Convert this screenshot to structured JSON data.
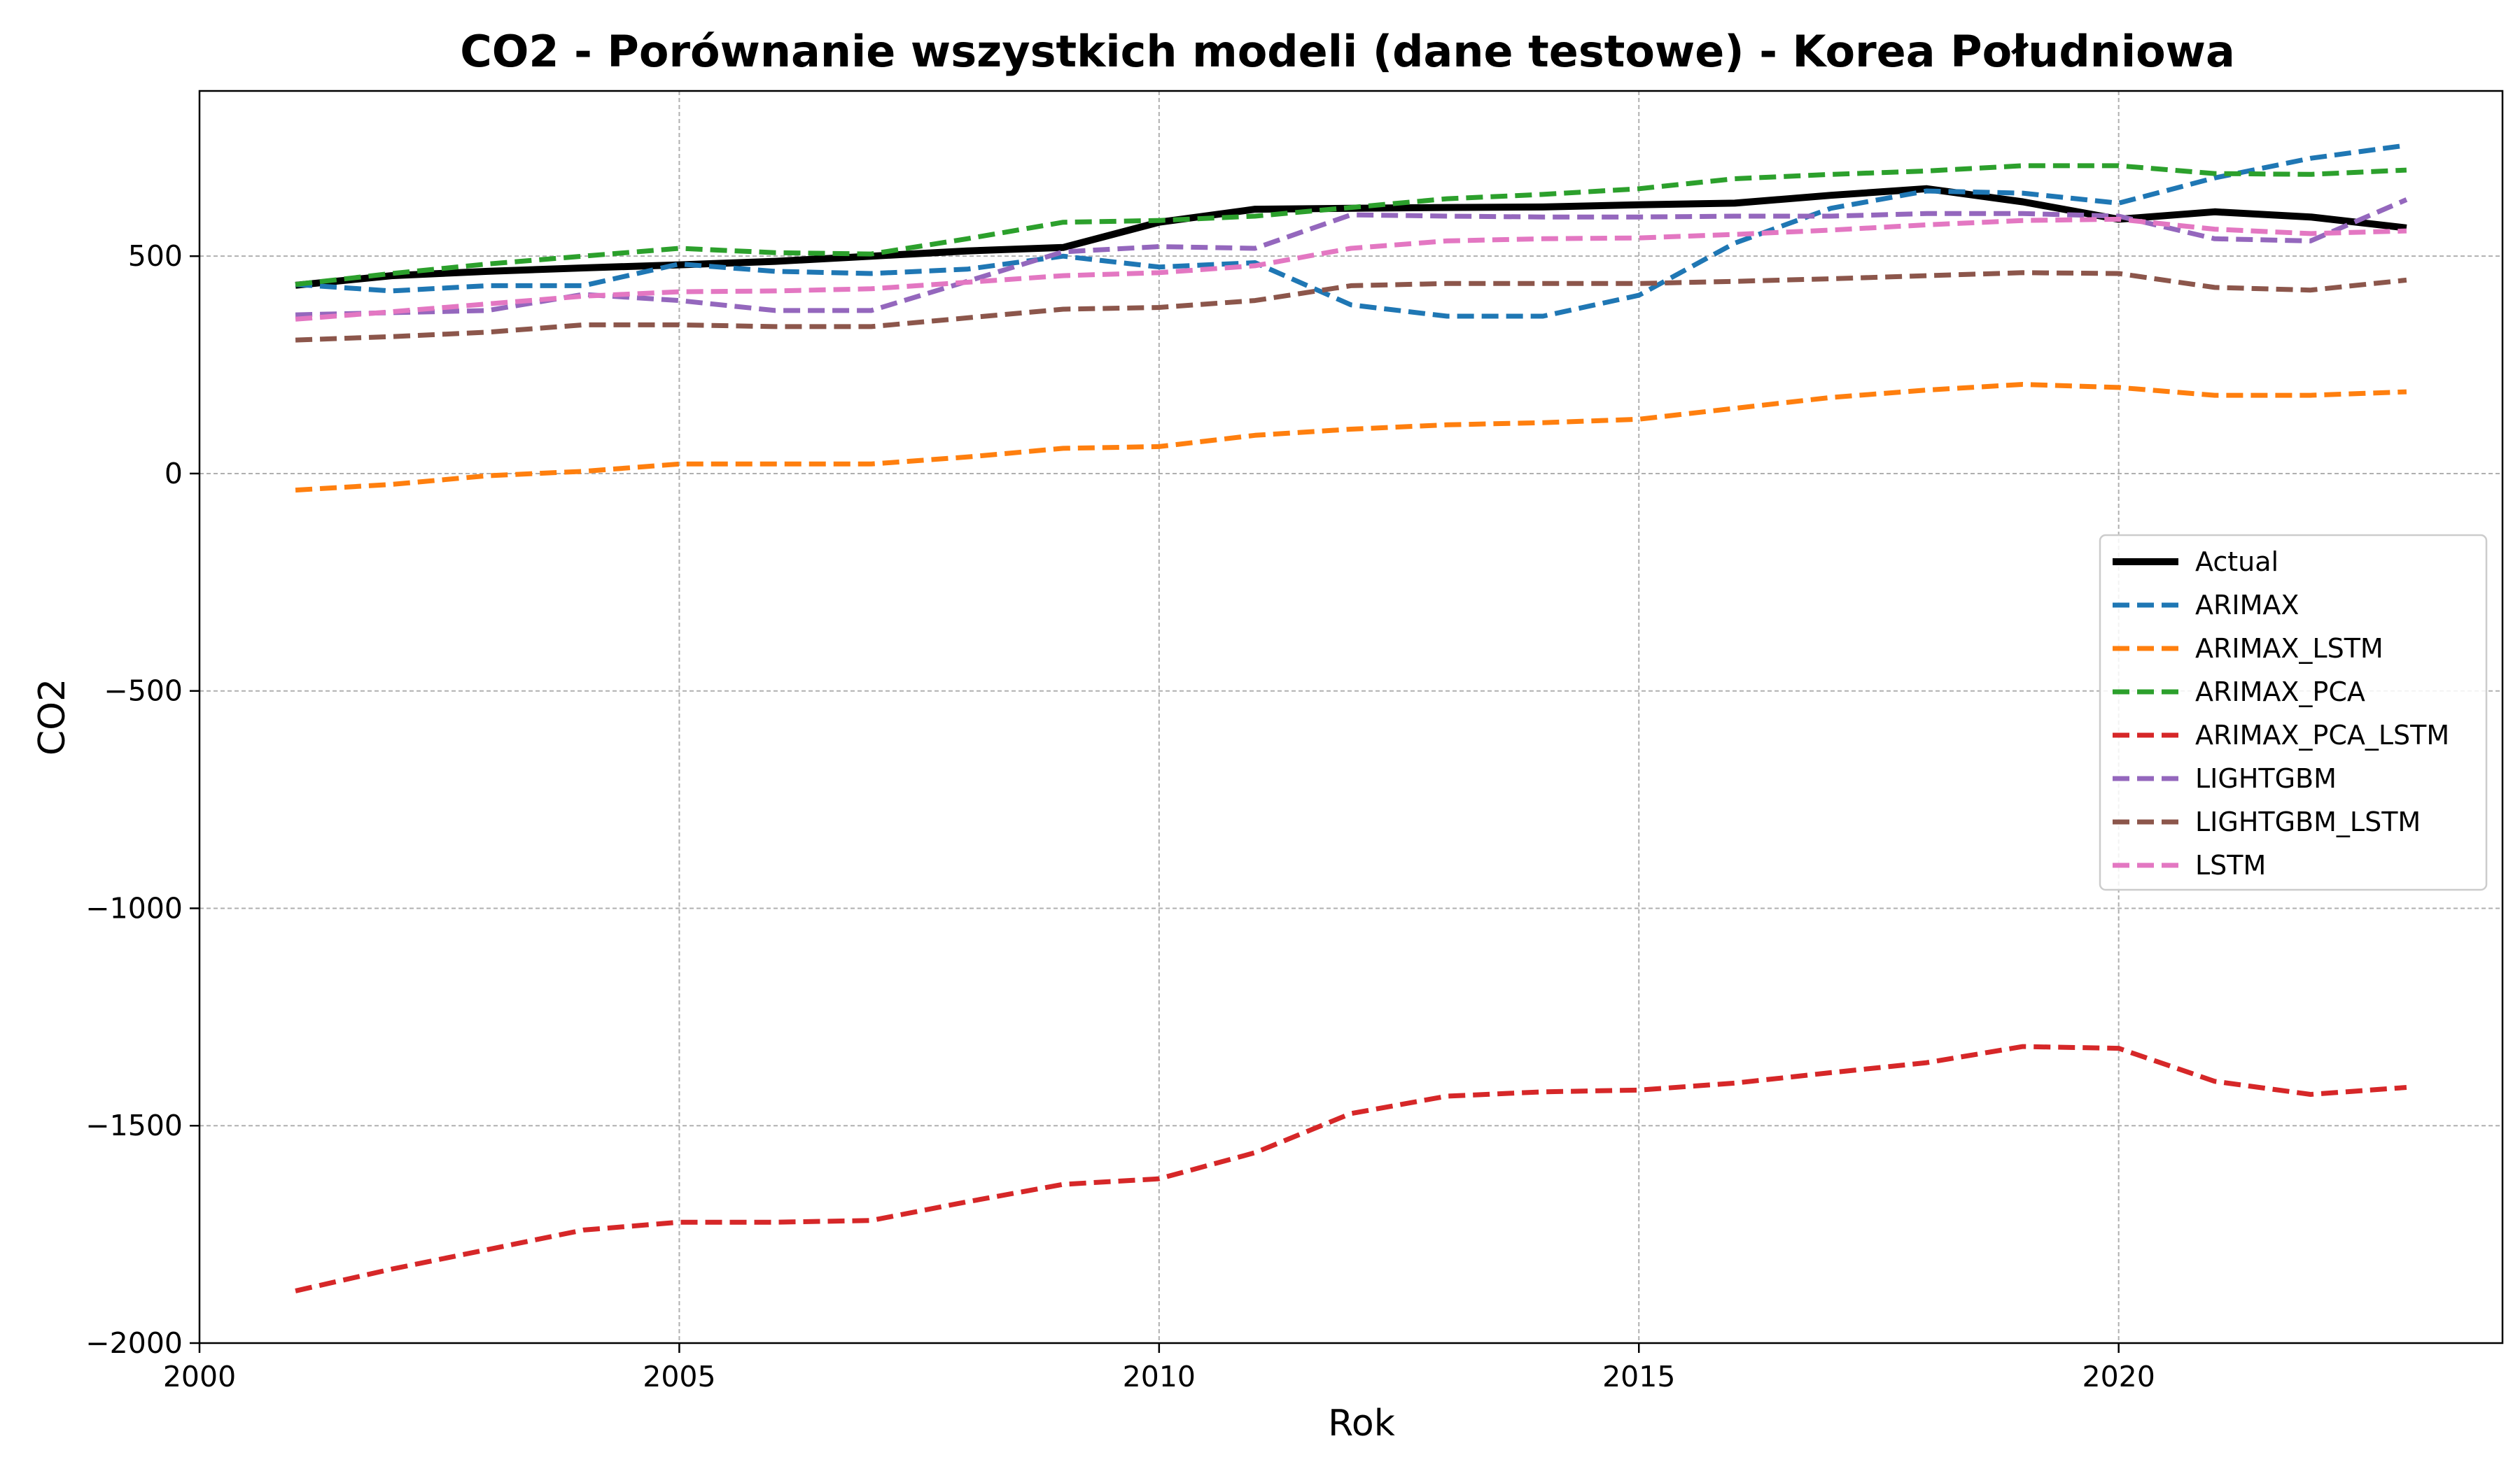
{
  "chart_data": {
    "type": "line",
    "title": "CO2 - Porównanie wszystkich modeli (dane testowe) - Korea Południowa",
    "xlabel": "Rok",
    "ylabel": "CO2",
    "xlim": [
      2000,
      2024
    ],
    "ylim": [
      -2000,
      880
    ],
    "xticks": [
      2000,
      2005,
      2010,
      2015,
      2020
    ],
    "yticks": [
      -2000,
      -1500,
      -1000,
      -500,
      0,
      500
    ],
    "ytick_labels": [
      "−2000",
      "−1500",
      "−1000",
      "−500",
      "0",
      "500"
    ],
    "grid": true,
    "legend_position": "center-right",
    "x": [
      2001,
      2002,
      2003,
      2004,
      2005,
      2006,
      2007,
      2008,
      2009,
      2010,
      2011,
      2012,
      2013,
      2014,
      2015,
      2016,
      2017,
      2018,
      2019,
      2020,
      2021,
      2022,
      2023
    ],
    "series": [
      {
        "name": "Actual",
        "color": "#000000",
        "style": "solid",
        "values": [
          433,
          455,
          465,
          473,
          480,
          488,
          500,
          512,
          520,
          578,
          608,
          610,
          612,
          613,
          618,
          622,
          640,
          655,
          625,
          585,
          602,
          590,
          565
        ]
      },
      {
        "name": "ARIMAX",
        "color": "#1f77b4",
        "style": "dashed",
        "values": [
          435,
          420,
          432,
          432,
          482,
          465,
          460,
          470,
          500,
          475,
          485,
          388,
          362,
          362,
          410,
          530,
          610,
          650,
          645,
          622,
          680,
          725,
          755
        ]
      },
      {
        "name": "ARIMAX_LSTM",
        "color": "#ff7f0e",
        "style": "dashed",
        "values": [
          -38,
          -25,
          -5,
          5,
          22,
          22,
          22,
          38,
          58,
          62,
          88,
          102,
          112,
          117,
          125,
          150,
          175,
          192,
          205,
          198,
          180,
          180,
          188
        ]
      },
      {
        "name": "ARIMAX_PCA",
        "color": "#2ca02c",
        "style": "dashed",
        "values": [
          435,
          460,
          482,
          500,
          518,
          508,
          505,
          540,
          578,
          582,
          592,
          612,
          632,
          642,
          655,
          678,
          688,
          696,
          708,
          708,
          690,
          688,
          698
        ]
      },
      {
        "name": "ARIMAX_PCA_LSTM",
        "color": "#d62728",
        "style": "dashed",
        "values": [
          -1880,
          -1830,
          -1785,
          -1740,
          -1722,
          -1722,
          -1718,
          -1675,
          -1635,
          -1622,
          -1562,
          -1472,
          -1432,
          -1422,
          -1418,
          -1402,
          -1378,
          -1355,
          -1318,
          -1322,
          -1398,
          -1428,
          -1412
        ]
      },
      {
        "name": "LIGHTGBM",
        "color": "#9467bd",
        "style": "dashed",
        "values": [
          365,
          370,
          375,
          412,
          398,
          375,
          375,
          442,
          510,
          522,
          518,
          595,
          592,
          590,
          590,
          592,
          592,
          598,
          598,
          592,
          540,
          535,
          630
        ]
      },
      {
        "name": "LIGHTGBM_LSTM",
        "color": "#8c564b",
        "style": "dashed",
        "values": [
          307,
          315,
          325,
          342,
          342,
          338,
          338,
          358,
          378,
          382,
          398,
          432,
          437,
          437,
          437,
          442,
          448,
          455,
          462,
          460,
          428,
          422,
          445
        ]
      },
      {
        "name": "LSTM",
        "color": "#e377c2",
        "style": "dashed",
        "values": [
          355,
          372,
          390,
          408,
          418,
          420,
          425,
          440,
          455,
          462,
          478,
          518,
          535,
          540,
          542,
          550,
          560,
          572,
          582,
          585,
          562,
          552,
          558
        ]
      }
    ]
  }
}
